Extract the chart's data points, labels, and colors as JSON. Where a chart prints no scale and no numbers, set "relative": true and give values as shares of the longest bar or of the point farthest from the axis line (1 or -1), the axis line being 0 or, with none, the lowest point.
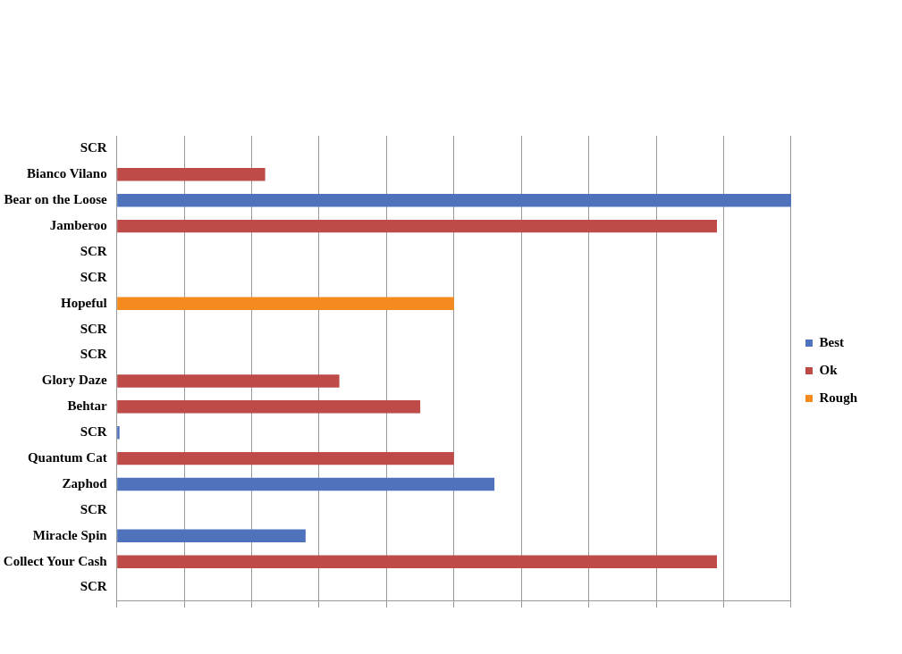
{
  "chart_data": {
    "type": "bar",
    "orientation": "horizontal",
    "relative": true,
    "grid": "x",
    "legend": "right",
    "categories": [
      "SCR",
      "Bianco Vilano",
      "Bear on the Loose",
      "Jamberoo",
      "SCR",
      "SCR",
      "Hopeful",
      "SCR",
      "SCR",
      "Glory Daze",
      "Behtar",
      "SCR",
      "Quantum Cat",
      "Zaphod",
      "SCR",
      "Miracle Spin",
      "Collect Your Cash",
      "SCR"
    ],
    "series": [
      {
        "name": "Best",
        "color": "#4f72bd",
        "values": [
          null,
          null,
          1,
          null,
          null,
          null,
          null,
          null,
          null,
          null,
          null,
          0.004,
          null,
          0.56,
          null,
          0.28,
          null,
          null
        ]
      },
      {
        "name": "Ok",
        "color": "#be4b48",
        "values": [
          null,
          0.22,
          null,
          0.89,
          null,
          null,
          null,
          null,
          null,
          0.33,
          0.45,
          null,
          0.5,
          null,
          null,
          null,
          0.89,
          null
        ]
      },
      {
        "name": "Rough",
        "color": "#f58a1f",
        "values": [
          null,
          null,
          null,
          null,
          null,
          null,
          0.5,
          null,
          null,
          null,
          null,
          null,
          null,
          null,
          null,
          null,
          null,
          null
        ]
      }
    ]
  }
}
